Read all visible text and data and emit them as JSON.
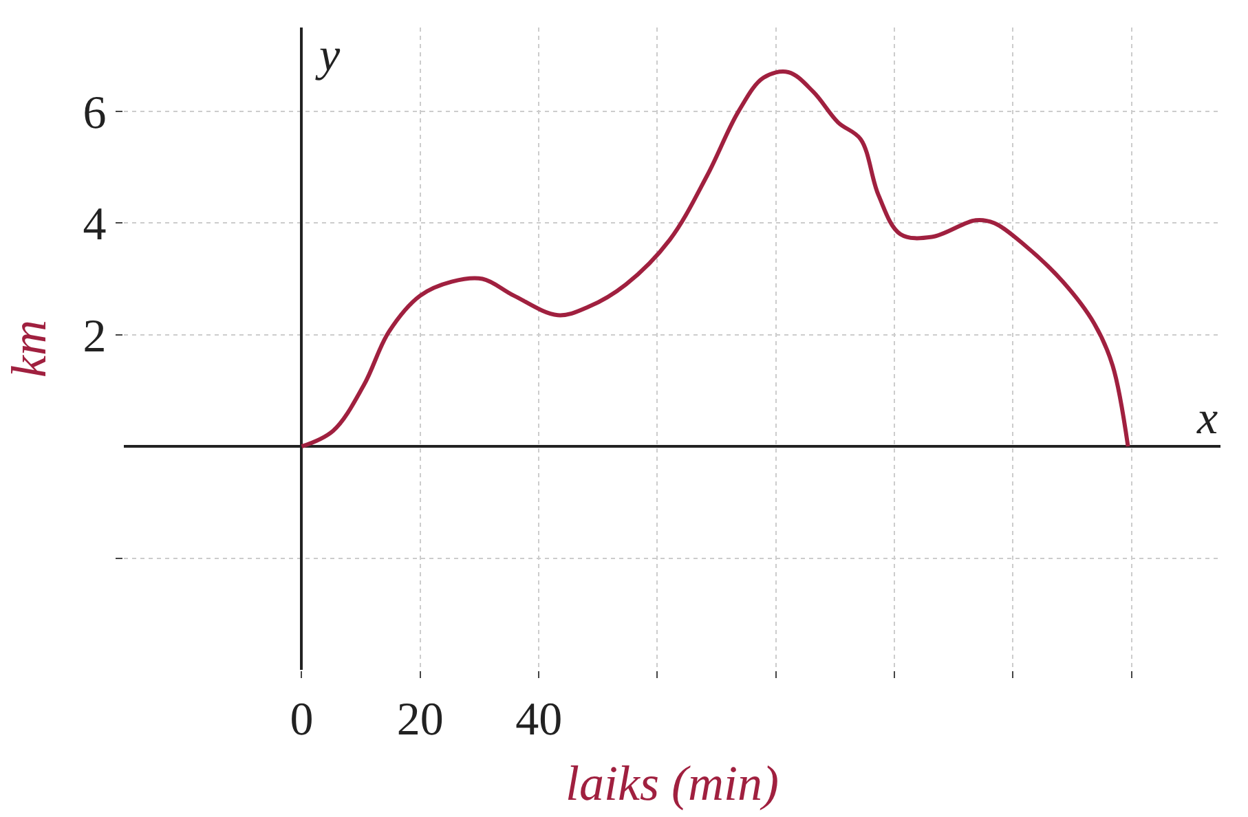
{
  "chart_data": {
    "type": "line",
    "xlabel": "laiks (min)",
    "ylabel": "km",
    "annotations": [
      "y",
      "x"
    ],
    "x": [
      0,
      5.3,
      10.5,
      14.7,
      20,
      25.3,
      30.5,
      35.8,
      43.2,
      48.4,
      54.7,
      62.1,
      68.4,
      73.7,
      77.9,
      82.1,
      86.3,
      90.5,
      94.3,
      97.3,
      101,
      106.3,
      113.7,
      116.8,
      122,
      128.4,
      133.7,
      136.8,
      139.4
    ],
    "series": [
      {
        "color": "#a0203f",
        "values": [
          0,
          0.28,
          1.1,
          2.05,
          2.7,
          2.95,
          3.0,
          2.7,
          2.35,
          2.5,
          2.9,
          3.7,
          4.85,
          6.0,
          6.6,
          6.7,
          6.35,
          5.8,
          5.5,
          4.5,
          3.8,
          3.75,
          4.05,
          4.0,
          3.6,
          2.95,
          2.2,
          1.45,
          0
        ]
      }
    ],
    "xlim": [
      -30,
      155
    ],
    "ylim": [
      -4,
      7.5
    ],
    "xticks": [
      {
        "value": 0,
        "label": "0"
      },
      20,
      40,
      {
        "value": 60,
        "label": null
      },
      {
        "value": 80,
        "label": null
      },
      {
        "value": 100,
        "label": null
      },
      {
        "value": 120,
        "label": null
      },
      {
        "value": 140,
        "label": null
      }
    ],
    "yticks": [
      {
        "value": -2,
        "label": null
      },
      2,
      4,
      6
    ],
    "grid": true,
    "legend": false,
    "marker": "none",
    "line_style": "solid"
  }
}
